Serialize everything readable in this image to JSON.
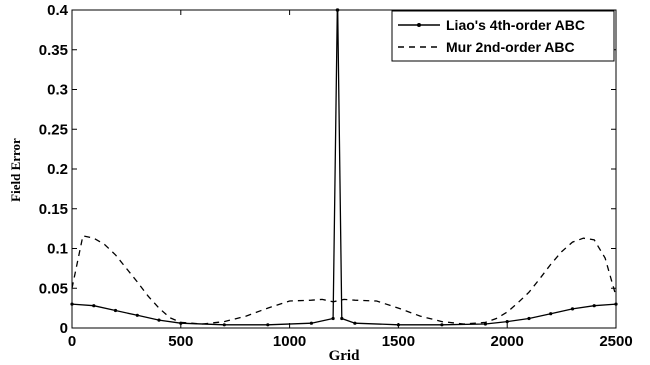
{
  "chart_data": {
    "type": "line",
    "xlabel": "Grid",
    "ylabel": "Field Error",
    "xlim": [
      0,
      2500
    ],
    "ylim": [
      0,
      0.4
    ],
    "xticks": [
      "0",
      "500",
      "1000",
      "1500",
      "2000",
      "2500"
    ],
    "yticks": [
      "0",
      "0.05",
      "0.1",
      "0.15",
      "0.2",
      "0.25",
      "0.3",
      "0.35",
      "0.4"
    ],
    "grid": false,
    "legend_position": "top-right",
    "series": [
      {
        "name": "Liao's 4th-order ABC",
        "style": "solid",
        "marker": "dot",
        "color": "#000000",
        "x": [
          0,
          100,
          200,
          300,
          400,
          500,
          700,
          900,
          1100,
          1200,
          1219,
          1221,
          1240,
          1300,
          1500,
          1700,
          1900,
          2000,
          2100,
          2200,
          2300,
          2400,
          2500
        ],
        "y": [
          0.03,
          0.028,
          0.022,
          0.016,
          0.01,
          0.006,
          0.004,
          0.004,
          0.006,
          0.012,
          0.4,
          0.4,
          0.012,
          0.006,
          0.004,
          0.004,
          0.005,
          0.008,
          0.012,
          0.018,
          0.024,
          0.028,
          0.03
        ]
      },
      {
        "name": "Mur 2nd-order ABC",
        "style": "dashed",
        "color": "#000000",
        "x": [
          0,
          50,
          100,
          150,
          200,
          250,
          300,
          350,
          400,
          450,
          500,
          600,
          700,
          800,
          900,
          1000,
          1100,
          1150,
          1200,
          1250,
          1300,
          1400,
          1500,
          1600,
          1700,
          1800,
          1900,
          1950,
          2000,
          2050,
          2100,
          2150,
          2200,
          2250,
          2300,
          2350,
          2400,
          2450,
          2500
        ],
        "y": [
          0.05,
          0.116,
          0.113,
          0.105,
          0.092,
          0.075,
          0.058,
          0.04,
          0.025,
          0.013,
          0.007,
          0.005,
          0.008,
          0.015,
          0.025,
          0.034,
          0.035,
          0.036,
          0.033,
          0.036,
          0.035,
          0.034,
          0.025,
          0.015,
          0.008,
          0.005,
          0.007,
          0.012,
          0.02,
          0.032,
          0.045,
          0.062,
          0.08,
          0.096,
          0.108,
          0.113,
          0.111,
          0.088,
          0.04
        ]
      }
    ]
  }
}
